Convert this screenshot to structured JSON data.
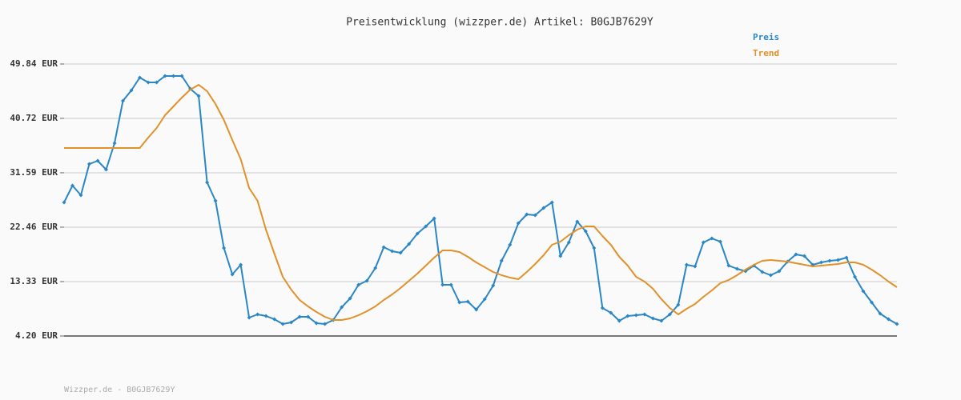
{
  "chart_data": {
    "type": "line",
    "title": "Preisentwicklung (wizzper.de) Artikel: B0GJB7629Y",
    "source": "Wizzper.de - B0GJB7629Y",
    "legend": "top-right",
    "grid": true,
    "ylim": [
      4.2,
      49.84
    ],
    "yticks": [
      {
        "value": 4.2,
        "label": "4.20 EUR"
      },
      {
        "value": 13.33,
        "label": "13.33 EUR"
      },
      {
        "value": 22.46,
        "label": "22.46 EUR"
      },
      {
        "value": 31.59,
        "label": "31.59 EUR"
      },
      {
        "value": 40.72,
        "label": "40.72 EUR"
      },
      {
        "value": 49.84,
        "label": "49.84 EUR"
      }
    ],
    "series": [
      {
        "name": "Preis",
        "color": "#2a86c4",
        "markers": true,
        "values": [
          26.62,
          29.44,
          27.83,
          33.06,
          33.6,
          32.12,
          36.55,
          43.67,
          45.41,
          47.56,
          46.75,
          46.75,
          47.83,
          47.83,
          47.83,
          45.68,
          44.47,
          29.97,
          26.89,
          18.97,
          14.54,
          16.15,
          7.29,
          7.82,
          7.56,
          7.02,
          6.21,
          6.48,
          7.42,
          7.42,
          6.35,
          6.21,
          6.88,
          9.03,
          10.51,
          12.79,
          13.46,
          15.61,
          19.1,
          18.43,
          18.16,
          19.64,
          21.38,
          22.59,
          23.93,
          12.79,
          12.79,
          9.84,
          9.97,
          8.63,
          10.38,
          12.66,
          16.82,
          19.5,
          23.13,
          24.6,
          24.47,
          25.68,
          26.62,
          17.62,
          19.91,
          23.4,
          21.79,
          18.97,
          8.9,
          8.09,
          6.75,
          7.56,
          7.69,
          7.82,
          7.15,
          6.75,
          7.82,
          9.44,
          16.15,
          15.88,
          19.91,
          20.58,
          20.04,
          16.01,
          15.48,
          15.07,
          16.01,
          14.94,
          14.4,
          15.07,
          16.68,
          17.89,
          17.62,
          16.15,
          16.55,
          16.82,
          16.95,
          17.36,
          14.13,
          11.72,
          9.84,
          7.96,
          7.02,
          6.21
        ]
      },
      {
        "name": "Trend",
        "color": "#e0912a",
        "markers": false,
        "values": [
          35.75,
          35.75,
          35.75,
          35.75,
          35.75,
          35.75,
          35.75,
          35.75,
          35.75,
          35.75,
          37.49,
          39.1,
          41.25,
          42.73,
          44.2,
          45.55,
          46.35,
          45.28,
          43.13,
          40.44,
          37.09,
          33.87,
          29.03,
          26.89,
          22.05,
          18.03,
          14.13,
          11.99,
          10.24,
          9.17,
          8.23,
          7.42,
          6.88,
          6.88,
          7.15,
          7.69,
          8.36,
          9.17,
          10.24,
          11.18,
          12.25,
          13.46,
          14.67,
          16.01,
          17.36,
          18.56,
          18.56,
          18.3,
          17.49,
          16.55,
          15.74,
          14.94,
          14.4,
          14.0,
          13.73,
          14.94,
          16.28,
          17.76,
          19.5,
          20.04,
          21.11,
          22.05,
          22.59,
          22.59,
          20.98,
          19.5,
          17.49,
          16.01,
          14.13,
          13.33,
          12.12,
          10.38,
          8.9,
          7.82,
          8.76,
          9.57,
          10.78,
          11.85,
          13.06,
          13.6,
          14.4,
          15.34,
          16.15,
          16.82,
          16.95,
          16.82,
          16.68,
          16.42,
          16.15,
          15.88,
          16.01,
          16.15,
          16.28,
          16.55,
          16.55,
          16.15,
          15.34,
          14.4,
          13.33,
          12.39
        ]
      }
    ]
  }
}
